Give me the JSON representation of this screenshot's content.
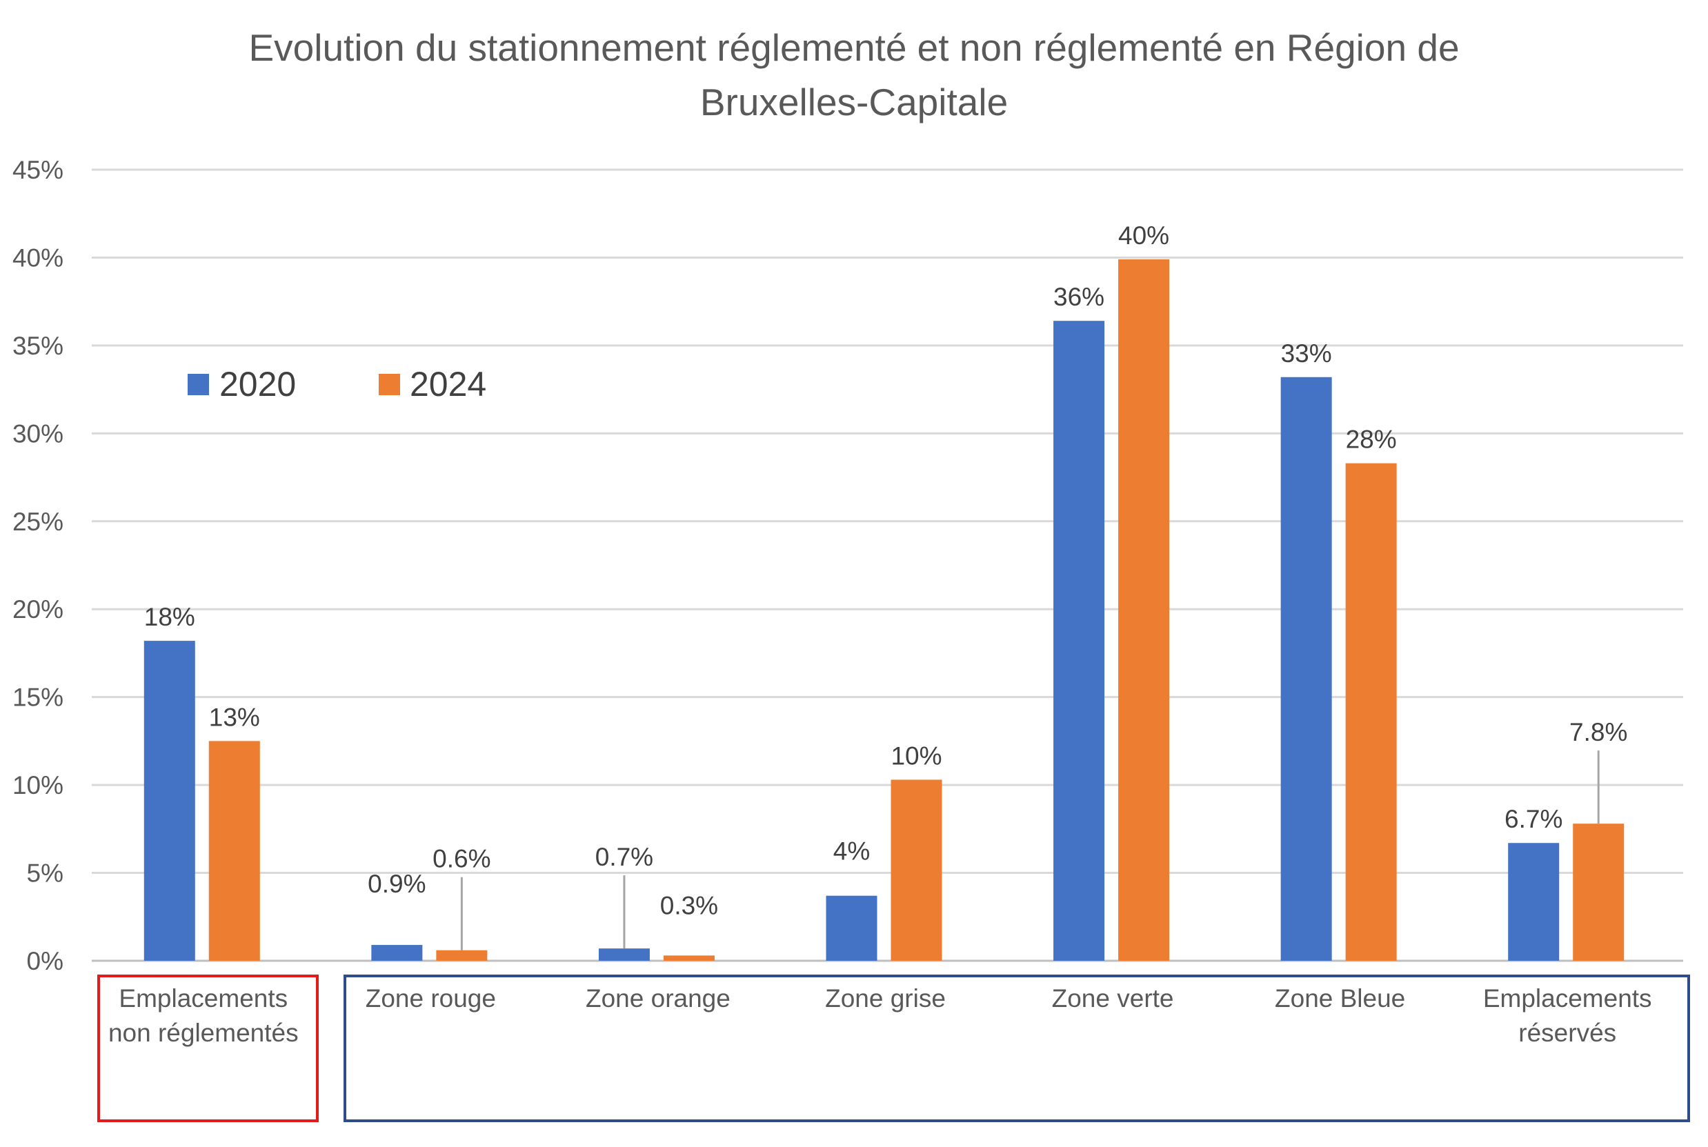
{
  "chart_data": {
    "type": "bar",
    "title_lines": [
      "Evolution du stationnement réglementé et non réglementé en Région de",
      "Bruxelles-Capitale"
    ],
    "categories": [
      [
        "Emplacements",
        "non réglementés"
      ],
      [
        "Zone rouge"
      ],
      [
        "Zone orange"
      ],
      [
        "Zone grise"
      ],
      [
        "Zone verte"
      ],
      [
        "Zone Bleue"
      ],
      [
        "Emplacements",
        "réservés"
      ]
    ],
    "series": [
      {
        "name": "2020",
        "color": "#4472c4",
        "values": [
          18.2,
          0.9,
          0.7,
          3.7,
          36.4,
          33.2,
          6.7
        ],
        "labels": [
          "18%",
          "0.9%",
          "0.7%",
          "4%",
          "36%",
          "33%",
          "6.7%"
        ]
      },
      {
        "name": "2024",
        "color": "#ed7d31",
        "values": [
          12.5,
          0.6,
          0.3,
          10.3,
          39.9,
          28.3,
          7.8
        ],
        "labels": [
          "13%",
          "0.6%",
          "0.3%",
          "10%",
          "40%",
          "28%",
          "7.8%"
        ]
      }
    ],
    "ylim": [
      0,
      45
    ],
    "yticks": [
      "0%",
      "5%",
      "10%",
      "15%",
      "20%",
      "25%",
      "30%",
      "35%",
      "40%",
      "45%"
    ],
    "grid": true,
    "legend_position": "top-left",
    "group_boxes": [
      {
        "categories": [
          0
        ],
        "color": "#e31a1c"
      },
      {
        "categories": [
          1,
          2,
          3,
          4,
          5,
          6
        ],
        "color": "#2f4b8c"
      }
    ]
  }
}
